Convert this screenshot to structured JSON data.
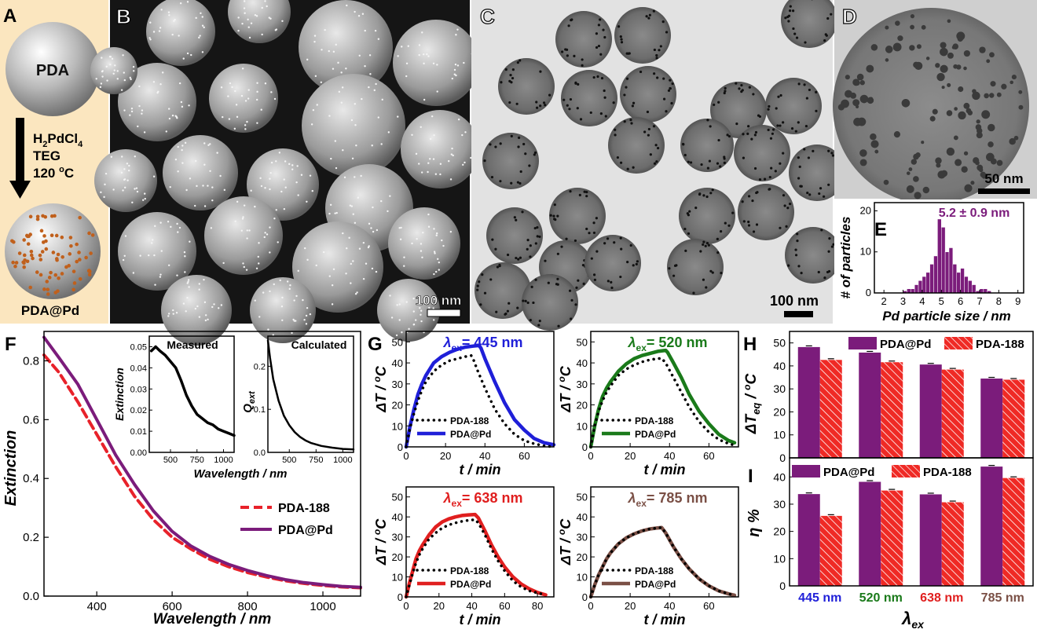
{
  "colors": {
    "pda_at_pd": "#7b1c7b",
    "pda188": "#e8222a",
    "dotted": "#000000",
    "blue": "#1f1fd8",
    "green": "#1a7a1a",
    "red": "#e01f1f",
    "brown": "#7a4f45",
    "schematic_bg": "#fbe6bf",
    "pd_dot": "#c0601c"
  },
  "panel_a": {
    "letter": "A",
    "sphere_label": "PDA",
    "reagent_line1_main": "H",
    "reagent_line1_sub1": "2",
    "reagent_line1_mid": "PdCl",
    "reagent_line1_sub2": "4",
    "reagent_line2": "TEG",
    "reagent_line3_main": "120 ",
    "reagent_line3_sup": "o",
    "reagent_line3_end": "C",
    "product_label": "PDA@Pd"
  },
  "panel_b": {
    "letter": "B",
    "scalebar": "100 nm"
  },
  "panel_c": {
    "letter": "C",
    "scalebar": "100 nm"
  },
  "panel_d": {
    "letter": "D",
    "scalebar": "50 nm"
  },
  "panel_e": {
    "letter": "E",
    "annotation": "5.2 ± 0.9 nm",
    "xlabel": "Pd particle size / nm",
    "ylabel": "# of particles",
    "xticks": [
      "2",
      "3",
      "4",
      "5",
      "6",
      "7",
      "8",
      "9"
    ],
    "yticks": [
      "0",
      "10",
      "20"
    ]
  },
  "panel_f": {
    "letter": "F",
    "xlabel": "Wavelength / nm",
    "ylabel": "Extinction",
    "xticks": [
      "400",
      "600",
      "800",
      "1000"
    ],
    "yticks": [
      "0.0",
      "0.2",
      "0.4",
      "0.6",
      "0.8"
    ],
    "legend": [
      "PDA-188",
      "PDA@Pd"
    ],
    "inset_measured_title": "Measured",
    "inset_calculated_title": "Calculated",
    "inset_ylabel_measured": "Extinction",
    "inset_ylabel_calc_main": "Q",
    "inset_ylabel_calc_sub": "ext",
    "inset_xlabel": "Wavelength / nm",
    "inset_measured_yticks": [
      "0.00",
      "0.01",
      "0.02",
      "0.03",
      "0.04",
      "0.05"
    ],
    "inset_calc_yticks": [
      "0.0",
      "0.1",
      "0.2"
    ],
    "inset_xticks": [
      "500",
      "750",
      "1000"
    ]
  },
  "panel_g": {
    "letter": "G",
    "xlabel": "t / min",
    "ylabel_main": "ΔT / ",
    "ylabel_sup": "o",
    "ylabel_end": "C",
    "legend": [
      "PDA-188",
      "PDA@Pd"
    ],
    "lambda_sub": "ex",
    "subplots": [
      {
        "wavelength": "= 445 nm",
        "xticks": [
          "0",
          "20",
          "40",
          "60"
        ],
        "yticks": [
          "0",
          "10",
          "20",
          "30",
          "40",
          "50"
        ]
      },
      {
        "wavelength": "= 520 nm",
        "xticks": [
          "0",
          "20",
          "40",
          "60"
        ],
        "yticks": [
          "0",
          "10",
          "20",
          "30",
          "40",
          "50"
        ]
      },
      {
        "wavelength": "= 638 nm",
        "xticks": [
          "0",
          "20",
          "40",
          "60",
          "80"
        ],
        "yticks": [
          "0",
          "10",
          "20",
          "30",
          "40",
          "50"
        ]
      },
      {
        "wavelength": "= 785 nm",
        "xticks": [
          "0",
          "20",
          "40",
          "60"
        ],
        "yticks": [
          "0",
          "10",
          "20",
          "30",
          "40",
          "50"
        ]
      }
    ]
  },
  "panel_h": {
    "letter": "H",
    "ylabel_main": "ΔT",
    "ylabel_sub": "eq",
    "ylabel_end": " / ",
    "ylabel_sup": "o",
    "ylabel_last": "C",
    "yticks": [
      "0",
      "10",
      "20",
      "30",
      "40",
      "50"
    ],
    "legend": [
      "PDA@Pd",
      "PDA-188"
    ]
  },
  "panel_i": {
    "letter": "I",
    "ylabel": "η %",
    "yticks": [
      "0",
      "10",
      "20",
      "30",
      "40"
    ],
    "legend": [
      "PDA@Pd",
      "PDA-188"
    ],
    "xticks": [
      "445 nm",
      "520 nm",
      "638 nm",
      "785 nm"
    ],
    "xlabel_main": "λ",
    "xlabel_sub": "ex"
  },
  "chart_data": [
    {
      "id": "E",
      "type": "bar",
      "x": [
        3.1,
        3.3,
        3.5,
        3.7,
        3.9,
        4.1,
        4.3,
        4.5,
        4.7,
        4.9,
        5.1,
        5.3,
        5.5,
        5.7,
        5.9,
        6.1,
        6.3,
        6.5,
        6.7,
        6.9,
        7.1,
        7.3,
        7.5
      ],
      "values": [
        0.5,
        1,
        1,
        2,
        3,
        4,
        5,
        7,
        9,
        18,
        16,
        10,
        11,
        7,
        5,
        6,
        4,
        3,
        2,
        0.5,
        1,
        1,
        0.5
      ],
      "xlabel": "Pd particle size / nm",
      "ylabel": "# of particles",
      "xlim": [
        1.5,
        9.3
      ],
      "ylim": [
        0,
        22
      ]
    },
    {
      "id": "F",
      "type": "line",
      "xlabel": "Wavelength / nm",
      "ylabel": "Extinction",
      "xlim": [
        260,
        1100
      ],
      "ylim": [
        0,
        0.9
      ],
      "series": [
        {
          "name": "PDA-188",
          "x": [
            260,
            300,
            350,
            400,
            450,
            500,
            550,
            600,
            650,
            700,
            750,
            800,
            850,
            900,
            950,
            1000,
            1050,
            1100
          ],
          "y": [
            0.82,
            0.76,
            0.66,
            0.55,
            0.44,
            0.34,
            0.26,
            0.2,
            0.16,
            0.125,
            0.1,
            0.08,
            0.065,
            0.052,
            0.043,
            0.036,
            0.031,
            0.028
          ]
        },
        {
          "name": "PDA@Pd",
          "x": [
            260,
            300,
            350,
            400,
            450,
            500,
            550,
            600,
            650,
            700,
            750,
            800,
            850,
            900,
            950,
            1000,
            1050,
            1100
          ],
          "y": [
            0.88,
            0.81,
            0.72,
            0.6,
            0.48,
            0.38,
            0.29,
            0.22,
            0.17,
            0.135,
            0.108,
            0.087,
            0.07,
            0.056,
            0.046,
            0.039,
            0.033,
            0.03
          ]
        }
      ]
    },
    {
      "id": "F-inset-measured",
      "type": "line",
      "xlim": [
        300,
        1100
      ],
      "ylim": [
        0,
        0.055
      ],
      "series": [
        {
          "name": "",
          "x": [
            320,
            360,
            400,
            450,
            500,
            550,
            600,
            650,
            700,
            750,
            800,
            850,
            900,
            950,
            1000,
            1050,
            1100
          ],
          "y": [
            0.048,
            0.05,
            0.048,
            0.046,
            0.043,
            0.04,
            0.034,
            0.027,
            0.022,
            0.018,
            0.016,
            0.014,
            0.013,
            0.011,
            0.01,
            0.009,
            0.008
          ]
        }
      ]
    },
    {
      "id": "F-inset-calculated",
      "type": "line",
      "xlim": [
        300,
        1100
      ],
      "ylim": [
        0,
        0.27
      ],
      "series": [
        {
          "name": "",
          "x": [
            300,
            320,
            350,
            400,
            450,
            500,
            550,
            600,
            650,
            700,
            800,
            900,
            1000,
            1100
          ],
          "y": [
            0.26,
            0.22,
            0.17,
            0.12,
            0.085,
            0.063,
            0.047,
            0.036,
            0.028,
            0.022,
            0.015,
            0.011,
            0.008,
            0.007
          ]
        }
      ]
    },
    {
      "id": "G-445",
      "type": "line",
      "xlim": [
        0,
        75
      ],
      "ylim": [
        0,
        55
      ],
      "series": [
        {
          "name": "PDA-188",
          "x": [
            0,
            2,
            4,
            6,
            8,
            10,
            14,
            18,
            22,
            26,
            30,
            33,
            34,
            36,
            40,
            45,
            50,
            55,
            60,
            65,
            70,
            75
          ],
          "y": [
            0,
            9,
            16,
            22,
            27,
            31,
            36,
            39,
            41,
            42,
            43,
            43.5,
            42,
            37,
            28,
            18,
            11,
            6,
            3,
            1.5,
            0.5,
            0
          ]
        },
        {
          "name": "PDA@Pd",
          "x": [
            0,
            2,
            4,
            6,
            8,
            10,
            14,
            18,
            22,
            26,
            30,
            34,
            37,
            38,
            40,
            45,
            50,
            55,
            60,
            65,
            70,
            75
          ],
          "y": [
            0,
            10,
            18,
            25,
            30,
            34,
            40,
            43,
            45,
            46.5,
            47.5,
            48,
            48.3,
            47,
            42,
            31,
            21,
            13,
            8,
            4,
            2,
            1
          ]
        }
      ]
    },
    {
      "id": "G-520",
      "type": "line",
      "xlim": [
        0,
        75
      ],
      "ylim": [
        0,
        55
      ],
      "series": [
        {
          "name": "PDA-188",
          "x": [
            0,
            2,
            4,
            6,
            8,
            10,
            14,
            18,
            22,
            26,
            30,
            34,
            36,
            38,
            42,
            46,
            50,
            55,
            60,
            65,
            70,
            73
          ],
          "y": [
            0,
            10,
            17,
            22,
            26,
            29,
            34,
            37,
            39,
            40.5,
            41.5,
            42,
            42.2,
            40,
            33,
            26,
            19,
            12,
            7,
            3.5,
            1.5,
            0.8
          ]
        },
        {
          "name": "PDA@Pd",
          "x": [
            0,
            2,
            4,
            6,
            8,
            10,
            14,
            18,
            22,
            26,
            30,
            34,
            38,
            39,
            42,
            46,
            50,
            55,
            60,
            65,
            70,
            73
          ],
          "y": [
            0,
            10,
            18,
            24,
            28,
            31,
            36,
            39.5,
            42,
            43.5,
            44.5,
            45.5,
            46,
            45,
            40,
            33,
            25,
            17,
            11,
            6,
            3,
            2
          ]
        }
      ]
    },
    {
      "id": "G-638",
      "type": "line",
      "xlim": [
        0,
        90
      ],
      "ylim": [
        0,
        55
      ],
      "series": [
        {
          "name": "PDA-188",
          "x": [
            0,
            2,
            4,
            6,
            8,
            10,
            14,
            18,
            22,
            26,
            30,
            34,
            38,
            42,
            44,
            48,
            52,
            56,
            60,
            65,
            70,
            75,
            80,
            85
          ],
          "y": [
            0,
            6,
            12,
            17,
            21,
            24,
            29,
            32,
            34.5,
            36,
            37,
            37.8,
            38.3,
            38.6,
            37,
            31,
            24,
            18,
            13,
            8,
            5,
            3,
            2,
            1
          ]
        },
        {
          "name": "PDA@Pd",
          "x": [
            0,
            2,
            4,
            6,
            8,
            10,
            14,
            18,
            22,
            26,
            30,
            34,
            38,
            42,
            44,
            48,
            52,
            56,
            60,
            65,
            70,
            75,
            80,
            85
          ],
          "y": [
            0,
            7,
            13,
            19,
            23,
            26,
            31,
            35,
            37.5,
            39,
            40,
            40.7,
            41,
            41.2,
            39.5,
            33,
            26,
            20,
            15,
            10,
            6.5,
            4,
            2.2,
            1
          ]
        }
      ]
    },
    {
      "id": "G-785",
      "type": "line",
      "xlim": [
        0,
        75
      ],
      "ylim": [
        0,
        55
      ],
      "series": [
        {
          "name": "PDA-188",
          "x": [
            0,
            2,
            4,
            6,
            8,
            10,
            14,
            18,
            22,
            26,
            30,
            34,
            36,
            38,
            42,
            46,
            50,
            55,
            60,
            65,
            70,
            73
          ],
          "y": [
            0,
            6,
            11,
            15,
            19,
            22,
            26.5,
            29.5,
            31.5,
            33,
            34,
            34.5,
            34.7,
            32,
            25,
            19,
            14,
            9,
            5.5,
            3,
            1.5,
            0.8
          ]
        },
        {
          "name": "PDA@Pd",
          "x": [
            0,
            2,
            4,
            6,
            8,
            10,
            14,
            18,
            22,
            26,
            30,
            34,
            36,
            38,
            42,
            46,
            50,
            55,
            60,
            65,
            70,
            73
          ],
          "y": [
            0,
            6,
            11,
            15,
            19,
            22,
            26.5,
            29.5,
            31.5,
            33,
            34,
            34.5,
            34.7,
            32,
            25,
            19,
            14,
            9,
            5.5,
            3,
            1.5,
            0.8
          ]
        }
      ]
    },
    {
      "id": "H",
      "type": "bar",
      "categories": [
        "445 nm",
        "520 nm",
        "638 nm",
        "785 nm"
      ],
      "ylabel": "ΔTeq / oC",
      "ylim": [
        0,
        55
      ],
      "series": [
        {
          "name": "PDA@Pd",
          "values": [
            48.2,
            45.8,
            40.6,
            34.5
          ]
        },
        {
          "name": "PDA-188",
          "values": [
            42.6,
            41.6,
            38.4,
            34.0
          ]
        }
      ]
    },
    {
      "id": "I",
      "type": "bar",
      "categories": [
        "445 nm",
        "520 nm",
        "638 nm",
        "785 nm"
      ],
      "ylabel": "η %",
      "ylim": [
        0,
        47
      ],
      "series": [
        {
          "name": "PDA@Pd",
          "values": [
            33.7,
            38.2,
            33.6,
            43.8
          ]
        },
        {
          "name": "PDA-188",
          "values": [
            25.7,
            35.0,
            30.7,
            39.6
          ]
        }
      ]
    }
  ]
}
